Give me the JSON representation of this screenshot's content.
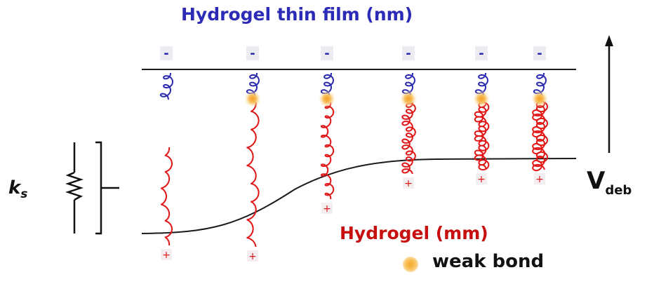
{
  "labels": {
    "film": "Hydrogel thin film (nm)",
    "gel": "Hydrogel (mm)",
    "ks_base": "k",
    "ks_sub": "s",
    "v_base": "V",
    "v_sub": "deb",
    "legend": "weak bond"
  },
  "charges": {
    "negative": "-",
    "positive": "+"
  },
  "colors": {
    "film_text": "#2b2bb8",
    "gel_text": "#c80f0f",
    "blue_chain": "#2a2ab0",
    "red_chain": "#e01515",
    "line": "#1a1a1a",
    "bond": "#f6a72a",
    "tag_bg": "#ececf2"
  }
}
